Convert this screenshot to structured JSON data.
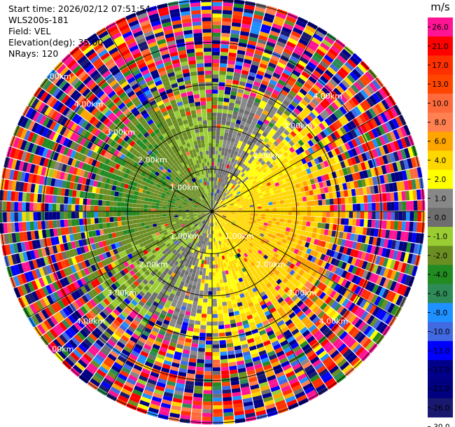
{
  "header": {
    "start_time": "Start time: 2026/02/12 07:51:54",
    "instrument": "WLS200s-181",
    "field": "Field: VEL",
    "elevation": "Elevation(deg): 35.00",
    "nrays": "NRays: 120"
  },
  "chart_data": {
    "type": "polar-ppi",
    "field": "VEL",
    "units": "m/s",
    "elevation_deg": 35.0,
    "n_rays": 120,
    "range_max_km": 5.0,
    "range_rings_km": [
      1,
      2,
      3,
      4,
      5
    ],
    "range_labels": [
      {
        "text": "1.00km",
        "dir": "nw"
      },
      {
        "text": "2.00km",
        "dir": "nw"
      },
      {
        "text": "3.00km",
        "dir": "nw"
      },
      {
        "text": "4.00km",
        "dir": "nw"
      },
      {
        "text": "5.00km",
        "dir": "nw"
      },
      {
        "text": "2.00km",
        "dir": "ne"
      },
      {
        "text": "3.00km",
        "dir": "ne"
      },
      {
        "text": "4.00km",
        "dir": "ne"
      },
      {
        "text": "1.00km",
        "dir": "sw"
      },
      {
        "text": "2.00km",
        "dir": "sw"
      },
      {
        "text": "3.00km",
        "dir": "sw"
      },
      {
        "text": "4.00km",
        "dir": "sw"
      },
      {
        "text": "5.00km",
        "dir": "sw"
      },
      {
        "text": "1.00km",
        "dir": "se"
      },
      {
        "text": "2.00km",
        "dir": "se"
      },
      {
        "text": "3.00km",
        "dir": "se"
      },
      {
        "text": "4.00km",
        "dir": "se"
      }
    ],
    "velocity_pattern": {
      "positive_direction": "east-southeast",
      "negative_direction": "west-northwest",
      "near_range_max_ms": 4.0,
      "far_range": "noise"
    },
    "colorbar": {
      "title": "m/s",
      "ticks": [
        "26.0",
        "21.0",
        "17.0",
        "13.0",
        "10.0",
        "8.0",
        "6.0",
        "4.0",
        "2.0",
        "1.0",
        "0.0",
        "-1.0",
        "-2.0",
        "-4.0",
        "-6.0",
        "-8.0",
        "-10.0",
        "-13.0",
        "-17.0",
        "-21.0",
        "-26.0",
        "-30.0"
      ],
      "colors": [
        "#ff1493",
        "#ff0000",
        "#ff3000",
        "#ff4500",
        "#ff6a3c",
        "#ff8050",
        "#ffa500",
        "#ffd700",
        "#ffff00",
        "#888888",
        "#6e6e6e",
        "#9acd32",
        "#6b8e23",
        "#228b22",
        "#2e8b57",
        "#1e90ff",
        "#4169e1",
        "#0000ff",
        "#00008b",
        "#000080",
        "#191970"
      ]
    }
  }
}
